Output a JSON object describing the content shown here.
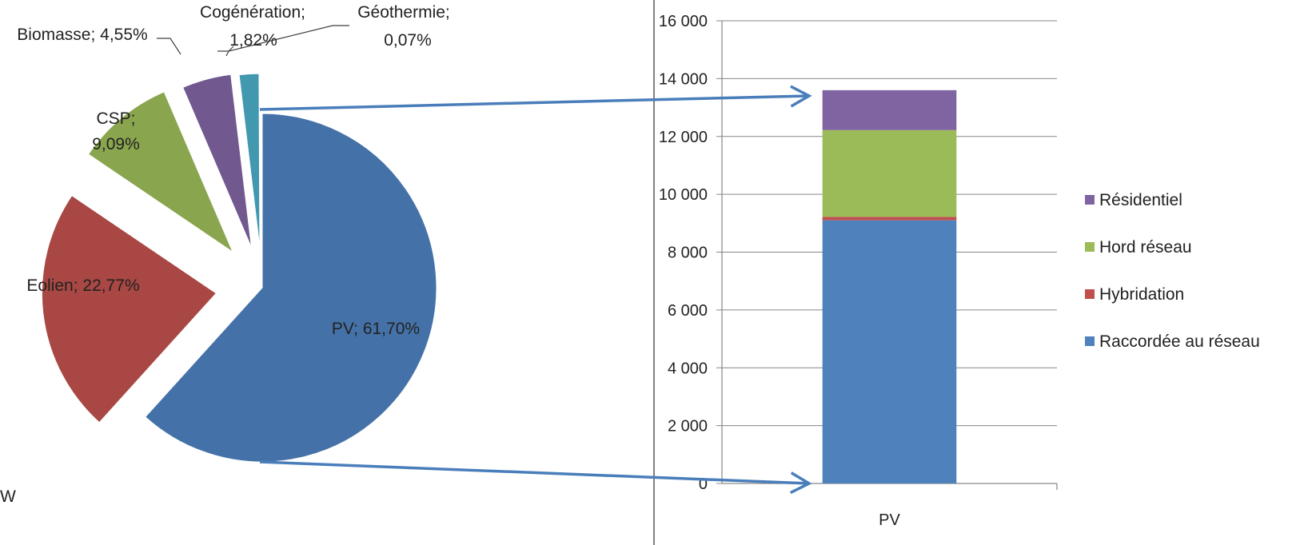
{
  "chart_data": [
    {
      "type": "pie",
      "slices": [
        {
          "name": "PV",
          "value": 61.7,
          "label": "PV; 61,70%",
          "color": "#4472A8"
        },
        {
          "name": "Eolien",
          "value": 22.77,
          "label": "Eolien; 22,77%",
          "color": "#A84743"
        },
        {
          "name": "CSP",
          "value": 9.09,
          "label_lines": [
            "CSP;",
            "9,09%"
          ],
          "color": "#89A54E"
        },
        {
          "name": "Biomasse",
          "value": 4.55,
          "label": "Biomasse; 4,55%",
          "color": "#71588F"
        },
        {
          "name": "Cogénération",
          "value": 1.82,
          "label_lines": [
            "Cogénération;",
            "1,82%"
          ],
          "color": "#4198AF"
        },
        {
          "name": "Géothermie",
          "value": 0.07,
          "label_lines": [
            "Géothermie;",
            "0,07%"
          ],
          "color": "#C9B79C"
        }
      ],
      "partial_text": "W"
    },
    {
      "type": "bar",
      "stacked": true,
      "categories": [
        "PV"
      ],
      "series": [
        {
          "name": "Raccordée au réseau",
          "values": [
            9100
          ],
          "color": "#4F81BD"
        },
        {
          "name": "Hybridation",
          "values": [
            120
          ],
          "color": "#C0504D"
        },
        {
          "name": "Hord réseau",
          "values": [
            3000
          ],
          "color": "#9BBB59"
        },
        {
          "name": "Résidentiel",
          "values": [
            1380
          ],
          "color": "#8064A2"
        }
      ],
      "ylim": [
        0,
        16000
      ],
      "yticks": [
        {
          "value": 0,
          "label": "0"
        },
        {
          "value": 2000,
          "label": "2 000"
        },
        {
          "value": 4000,
          "label": "4 000"
        },
        {
          "value": 6000,
          "label": "6 000"
        },
        {
          "value": 8000,
          "label": "8 000"
        },
        {
          "value": 10000,
          "label": "10 000"
        },
        {
          "value": 12000,
          "label": "12 000"
        },
        {
          "value": 14000,
          "label": "14 000"
        },
        {
          "value": 16000,
          "label": "16 000"
        }
      ],
      "legend_order": [
        "Résidentiel",
        "Hord réseau",
        "Hybridation",
        "Raccordée au réseau"
      ],
      "legend_position": "right",
      "grid": true
    }
  ],
  "colors": {
    "connector_arrow": "#4A7EBB",
    "gridline": "#868686",
    "divider": "#808080"
  }
}
